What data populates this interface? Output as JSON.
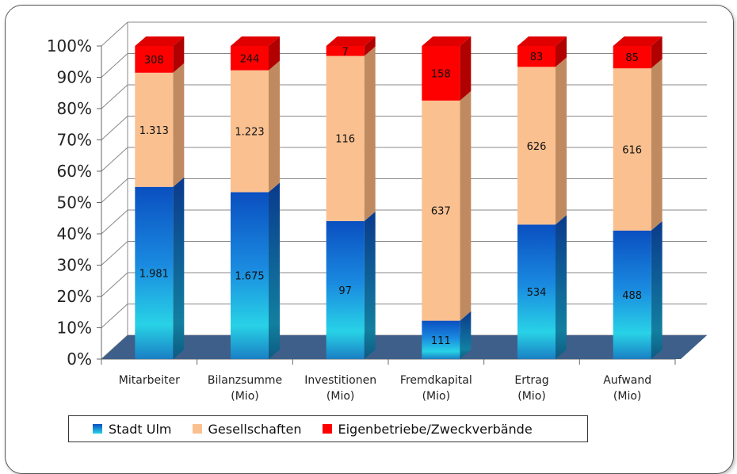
{
  "chart_data": {
    "type": "bar",
    "stacked": "percent",
    "style": "3d-column",
    "categories": [
      [
        "Mitarbeiter"
      ],
      [
        "Bilanzsumme",
        "(Mio)"
      ],
      [
        "Investitionen",
        "(Mio)"
      ],
      [
        "Fremdkapital",
        "(Mio)"
      ],
      [
        "Ertrag",
        "(Mio)"
      ],
      [
        "Aufwand",
        "(Mio)"
      ]
    ],
    "series": [
      {
        "name": "Stadt Ulm",
        "values": [
          1981,
          1675,
          97,
          111,
          534,
          488
        ],
        "labels": [
          "1.981",
          "1.675",
          "97",
          "111",
          "534",
          "488"
        ],
        "color": "#1877d6"
      },
      {
        "name": "Gesellschaften",
        "values": [
          1313,
          1223,
          116,
          637,
          626,
          616
        ],
        "labels": [
          "1.313",
          "1.223",
          "116",
          "637",
          "626",
          "616"
        ],
        "color": "#fac090"
      },
      {
        "name": "Eigenbetriebe/Zweckverbände",
        "values": [
          308,
          244,
          7,
          158,
          83,
          85
        ],
        "labels": [
          "308",
          "244",
          "7",
          "158",
          "83",
          "85"
        ],
        "color": "#ff0000"
      }
    ],
    "y_ticks": [
      "0%",
      "10%",
      "20%",
      "30%",
      "40%",
      "50%",
      "60%",
      "70%",
      "80%",
      "90%",
      "100%"
    ],
    "ylim": [
      0,
      100
    ],
    "grid": true,
    "legend_position": "bottom"
  },
  "legend": [
    {
      "label": "Stadt Ulm",
      "color": "#1877d6"
    },
    {
      "label": "Gesellschaften",
      "color": "#fac090"
    },
    {
      "label": "Eigenbetriebe/Zweckverbände",
      "color": "#ff0000"
    }
  ]
}
